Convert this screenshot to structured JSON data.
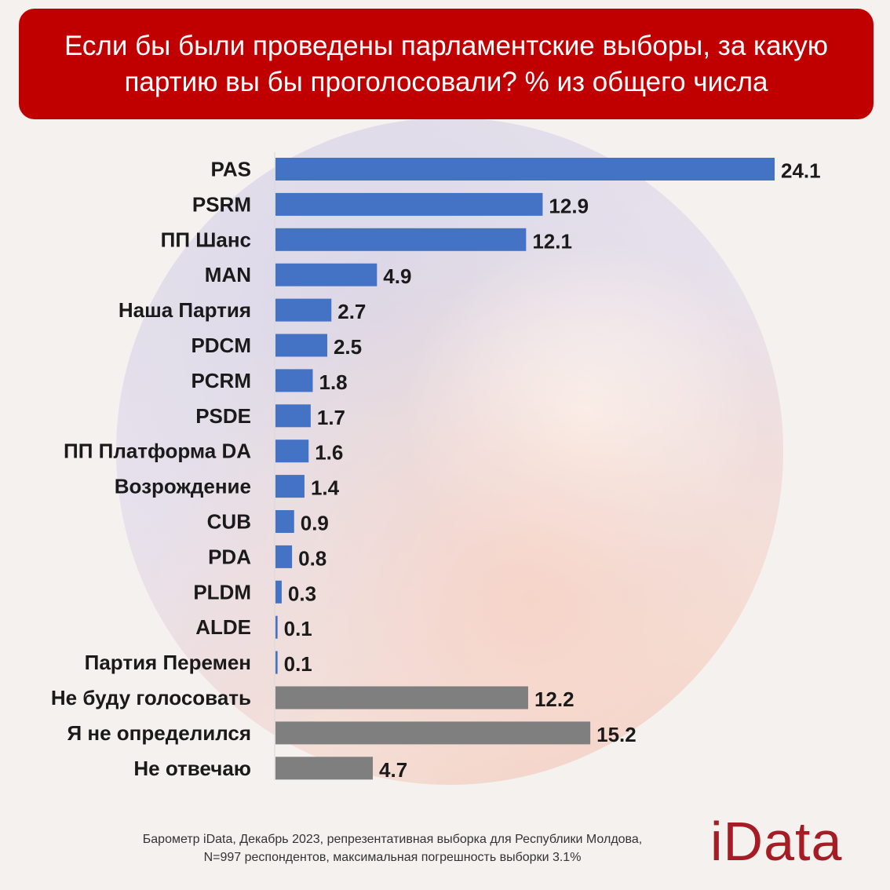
{
  "title": "Если бы были проведены парламентские выборы, за какую партию вы бы проголосовали? % из общего числа",
  "footnote_line1": "Барометр iData, Декабрь 2023, репрезентативная выборка для Республики Молдова,",
  "footnote_line2": "N=997 респондентов, максимальная погрешность выборки 3.1%",
  "logo": "iData",
  "colors": {
    "party": "#4472c4",
    "other": "#7f7f7f",
    "title_bg": "#c00000",
    "logo": "#a51c24"
  },
  "chart_data": {
    "type": "bar",
    "orientation": "horizontal",
    "title": "Если бы были проведены парламентские выборы, за какую партию вы бы проголосовали? % из общего числа",
    "categories": [
      "PAS",
      "PSRM",
      "ПП Шанс",
      "MAN",
      "Наша Партия",
      "PDCM",
      "PCRM",
      "PSDE",
      "ПП Платформа DA",
      "Возрождение",
      "CUB",
      "PDA",
      "PLDM",
      "ALDE",
      "Партия Перемен",
      "Не буду голосовать",
      "Я не определился",
      "Не отвечаю"
    ],
    "values": [
      24.1,
      12.9,
      12.1,
      4.9,
      2.7,
      2.5,
      1.8,
      1.7,
      1.6,
      1.4,
      0.9,
      0.8,
      0.3,
      0.1,
      0.1,
      12.2,
      15.2,
      4.7
    ],
    "groups": [
      "party",
      "party",
      "party",
      "party",
      "party",
      "party",
      "party",
      "party",
      "party",
      "party",
      "party",
      "party",
      "party",
      "party",
      "party",
      "other",
      "other",
      "other"
    ],
    "data_labels": [
      "24.1",
      "12.9",
      "12.1",
      "4.9",
      "2.7",
      "2.5",
      "1.8",
      "1.7",
      "1.6",
      "1.4",
      "0.9",
      "0.8",
      "0.3",
      "0.1",
      "0.1",
      "12.2",
      "15.2",
      "4.7"
    ],
    "xlim": [
      0,
      24.1
    ],
    "grid": false,
    "legend": "none"
  }
}
